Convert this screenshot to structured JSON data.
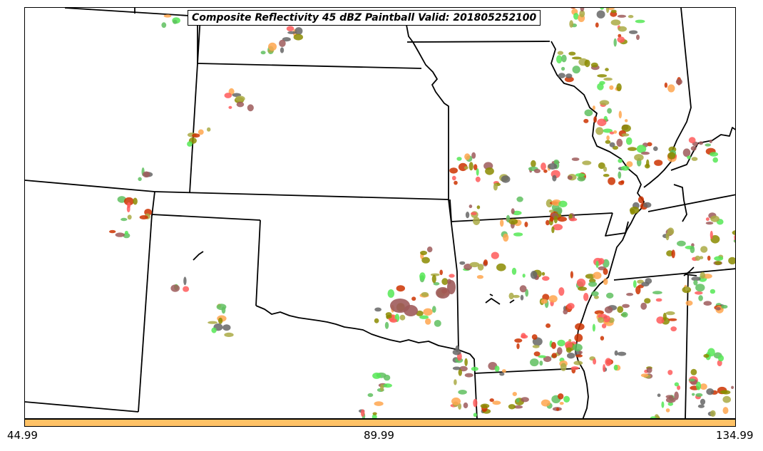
{
  "map": {
    "title": "Composite Reflectivity 45 dBZ Paintball Valid: 201805252100",
    "colors": {
      "boundary": "#000000",
      "paintball": [
        "#9e5b5b",
        "#ff5a5a",
        "#ffa64d",
        "#aaaa44",
        "#5fbf5f",
        "#55e855",
        "#8b8b00",
        "#666666",
        "#cc3300"
      ]
    }
  },
  "colorbar": {
    "color": "#ffc266",
    "ticks": [
      "44.99",
      "89.99",
      "134.99"
    ]
  }
}
